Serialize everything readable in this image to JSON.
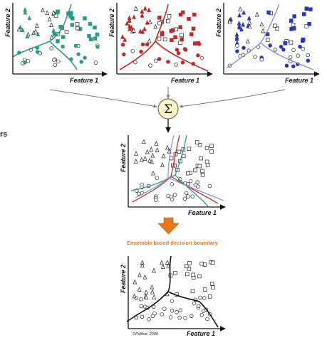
{
  "diagram": {
    "panels": [
      {
        "id": "p1",
        "x_label": "Feature 1",
        "y_label": "Feature 2",
        "color": "#2a9a8a"
      },
      {
        "id": "p2",
        "x_label": "Feature 1",
        "y_label": "Feature 2",
        "color": "#c0282a"
      },
      {
        "id": "p3",
        "x_label": "Feature 1",
        "y_label": "Feature 2",
        "color": "#2a35c0"
      },
      {
        "id": "combined",
        "x_label": "Feature 1",
        "y_label": "Feature 2"
      },
      {
        "id": "final",
        "x_label": "Feature 1",
        "y_label": "Feature 2"
      }
    ],
    "sigma_symbol": "Σ",
    "left_fragment": "rs",
    "caption": "Ensemble based decision boundary",
    "credit": "©Polikar, 2008",
    "colors": {
      "teal": "#2a9a8a",
      "red": "#c0282a",
      "blue": "#2a35c0",
      "accent": "#e8761e",
      "sigma_fill": "#fdf6c4"
    }
  }
}
